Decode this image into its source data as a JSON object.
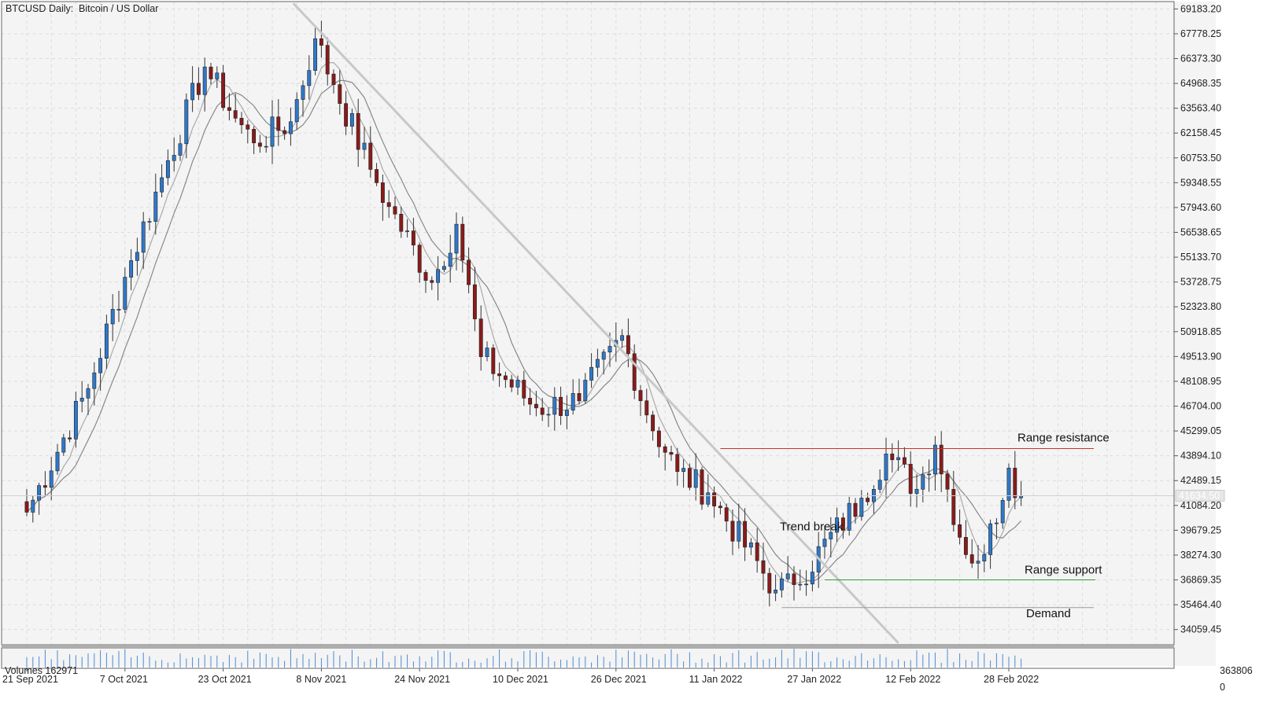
{
  "header": {
    "symbol": "BTCUSD",
    "timeframe": "Daily:",
    "description": "Bitcoin / US Dollar"
  },
  "volume_panel": {
    "label": "Volumes 162971",
    "scale_top": "363806",
    "scale_bottom": "0"
  },
  "current_price_label": "41634.50",
  "colors": {
    "background": "#f4f4f4",
    "grid": "#dcdcdc",
    "bull_body": "#2f78c9",
    "bear_body": "#8b1a1a",
    "wick": "#333333",
    "ma": "#aaaaaa",
    "trendline": "#c8c8c8",
    "resistance": "#c0392b",
    "support": "#2ca02c",
    "demand": "#999999",
    "volume": "#4a8ad4"
  },
  "chart_data": {
    "type": "candlestick",
    "symbol": "BTCUSD",
    "timeframe": "Daily",
    "y_ticks": [
      "69183.20",
      "67778.25",
      "66373.30",
      "64968.35",
      "63563.40",
      "62158.45",
      "60753.50",
      "59348.55",
      "57943.60",
      "56538.65",
      "55133.70",
      "53728.75",
      "52323.80",
      "50918.85",
      "49513.90",
      "48108.95",
      "46704.00",
      "45299.05",
      "43894.10",
      "42489.15",
      "41084.20",
      "39679.25",
      "38274.30",
      "36869.35",
      "35464.40",
      "34059.45"
    ],
    "x_ticks": [
      "21 Sep 2021",
      "7 Oct 2021",
      "23 Oct 2021",
      "8 Nov 2021",
      "24 Nov 2021",
      "10 Dec 2021",
      "26 Dec 2021",
      "11 Jan 2022",
      "27 Jan 2022",
      "12 Feb 2022",
      "28 Feb 2022"
    ],
    "ylim": [
      33200,
      69600
    ],
    "anchor_points": [
      {
        "date": "2021-09-21",
        "close": 40700
      },
      {
        "date": "2021-10-01",
        "close": 47700
      },
      {
        "date": "2021-10-07",
        "close": 54000
      },
      {
        "date": "2021-10-14",
        "close": 60600
      },
      {
        "date": "2021-10-20",
        "close": 65900
      },
      {
        "date": "2021-10-25",
        "close": 63000
      },
      {
        "date": "2021-10-28",
        "close": 61600
      },
      {
        "date": "2021-11-03",
        "close": 62800
      },
      {
        "date": "2021-11-07",
        "close": 67500
      },
      {
        "date": "2021-11-10",
        "close": 64900
      },
      {
        "date": "2021-11-16",
        "close": 60100
      },
      {
        "date": "2021-11-19",
        "close": 58000
      },
      {
        "date": "2021-11-26",
        "close": 53700
      },
      {
        "date": "2021-11-30",
        "close": 57000
      },
      {
        "date": "2021-12-04",
        "close": 49500
      },
      {
        "date": "2021-12-13",
        "close": 46600
      },
      {
        "date": "2021-12-20",
        "close": 47000
      },
      {
        "date": "2021-12-27",
        "close": 50700
      },
      {
        "date": "2021-12-31",
        "close": 46200
      },
      {
        "date": "2022-01-05",
        "close": 43000
      },
      {
        "date": "2022-01-10",
        "close": 41800
      },
      {
        "date": "2022-01-21",
        "close": 36300
      },
      {
        "date": "2022-01-24",
        "close": 36600
      },
      {
        "date": "2022-02-04",
        "close": 41500
      },
      {
        "date": "2022-02-08",
        "close": 44000
      },
      {
        "date": "2022-02-13",
        "close": 42000
      },
      {
        "date": "2022-02-16",
        "close": 44500
      },
      {
        "date": "2022-02-21",
        "close": 38300
      },
      {
        "date": "2022-02-24",
        "close": 38300
      },
      {
        "date": "2022-02-28",
        "close": 43200
      },
      {
        "date": "2022-03-02",
        "close": 41634.5
      }
    ],
    "annotations": [
      {
        "text": "Range resistance",
        "price": 44300
      },
      {
        "text": "Range support",
        "price": 36870
      },
      {
        "text": "Demand",
        "price": 35300
      },
      {
        "text": "Trend break"
      }
    ],
    "trendline": {
      "from": {
        "date": "2021-11-06",
        "price": 69500
      },
      "to": {
        "date": "2022-02-10",
        "price": 33300
      }
    },
    "moving_averages": [
      "fast",
      "slow"
    ]
  }
}
